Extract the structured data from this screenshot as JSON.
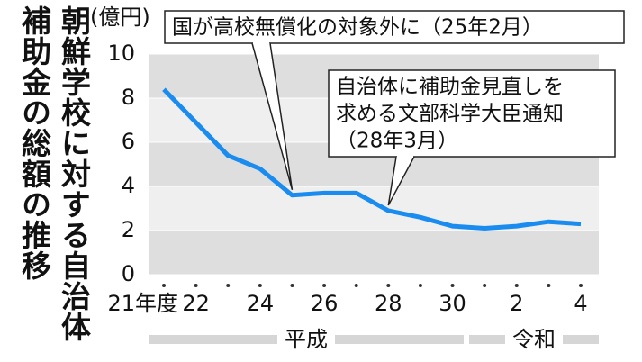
{
  "chart_data": {
    "type": "line",
    "title_lines": [
      "朝鮮学校に対する自治体",
      "補助金の総額の推移"
    ],
    "y_label": "(億円)",
    "categories": [
      "21年度",
      "22",
      null,
      "24",
      null,
      "26",
      null,
      "28",
      null,
      "30",
      null,
      "2",
      null,
      "4"
    ],
    "eras": [
      "平成",
      "令和"
    ],
    "series": [
      {
        "name": "補助金総額",
        "color": "#1a8cf0",
        "values": [
          8.4,
          6.9,
          5.4,
          4.8,
          3.6,
          3.7,
          3.7,
          2.9,
          2.6,
          2.2,
          2.1,
          2.2,
          2.4,
          2.3
        ]
      }
    ],
    "ylim": [
      0,
      10
    ],
    "yticks": [
      0,
      2,
      4,
      6,
      8,
      10
    ],
    "annotations": [
      {
        "lines": [
          "国が高校無償化の対象外に（25年2月）"
        ],
        "index": 4
      },
      {
        "lines": [
          "自治体に補助金見直しを",
          "求める文部科学大臣通知",
          "（28年3月）"
        ],
        "index": 7
      }
    ]
  }
}
